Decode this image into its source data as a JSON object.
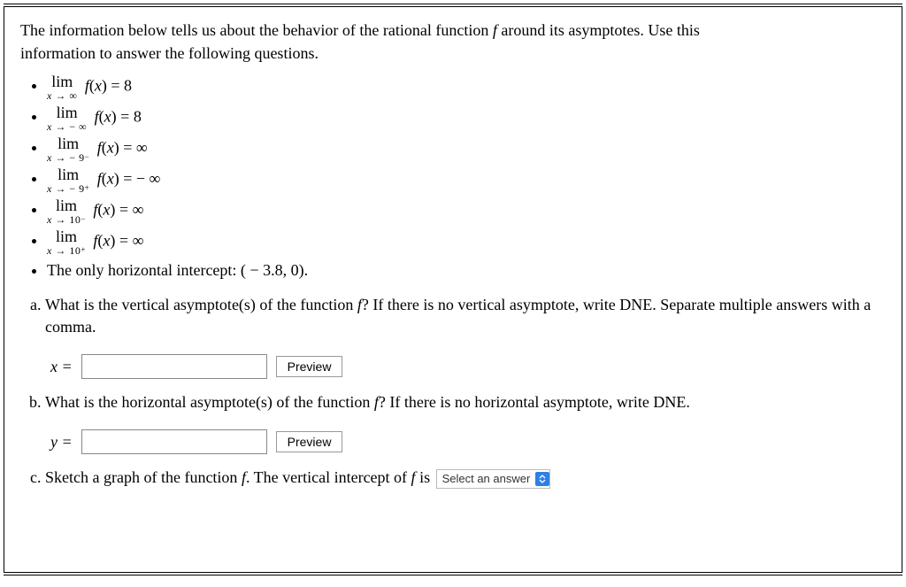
{
  "prompt": {
    "line1": "The information below tells us about the behavior of the rational function ",
    "funcname": "f",
    "line1b": " around its asymptotes. Use this",
    "line2": "information to answer the following questions."
  },
  "limits": [
    {
      "sub": "x → ∞",
      "rhs": " = 8"
    },
    {
      "sub": "x → − ∞",
      "rhs": " = 8"
    },
    {
      "sub": "x → − 9",
      "sup": "−",
      "rhs": " = ∞"
    },
    {
      "sub": "x → − 9",
      "sup": "+",
      "rhs": " =  − ∞"
    },
    {
      "sub": "x → 10",
      "sup": "−",
      "rhs": " = ∞"
    },
    {
      "sub": "x → 10",
      "sup": "+",
      "rhs": " = ∞"
    }
  ],
  "intercept_line": "The only horizontal intercept: ( − 3.8, 0).",
  "questions": {
    "a": "What is the vertical asymptote(s) of the function ",
    "a2": "? If there is no vertical asymptote, write DNE. Separate multiple answers with a comma.",
    "b": "What is the horizontal asymptote(s) of the function ",
    "b2": "? If there is no horizontal asymptote, write DNE.",
    "c1": "Sketch a graph of the function ",
    "c2": ". The vertical intercept of ",
    "c3": " is"
  },
  "labels": {
    "x_eq": "x =",
    "y_eq": "y =",
    "preview": "Preview",
    "select_placeholder": "Select an answer",
    "fx": "f(x)",
    "lim": "lim"
  }
}
